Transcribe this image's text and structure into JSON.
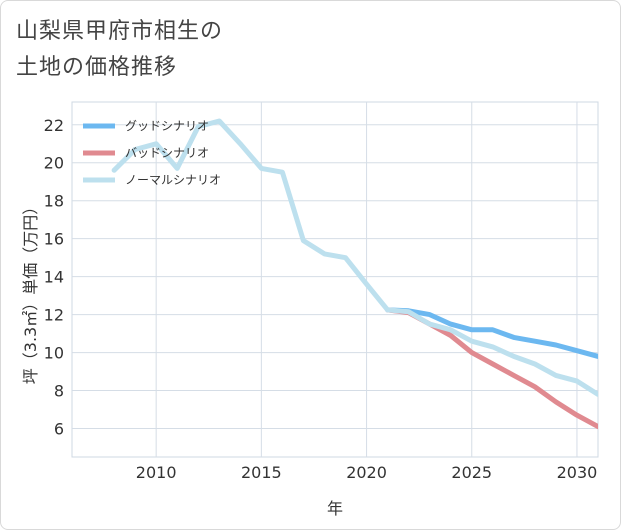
{
  "title": {
    "line1": "山梨県甲府市相生の",
    "line2": "土地の価格推移"
  },
  "chart_data": {
    "type": "line",
    "xlabel": "年",
    "ylabel": "坪（3.3㎡）単価（万円）",
    "xlim": [
      2006,
      2031
    ],
    "ylim": [
      4.5,
      23.2
    ],
    "xticks": [
      2010,
      2015,
      2020,
      2025,
      2030
    ],
    "yticks": [
      6,
      8,
      10,
      12,
      14,
      16,
      18,
      20,
      22
    ],
    "legend_position": "top-left",
    "series": [
      {
        "name": "グッドシナリオ",
        "color": "#6cb8f0",
        "x": [
          2021,
          2022,
          2023,
          2024,
          2025,
          2026,
          2027,
          2028,
          2029,
          2030,
          2031
        ],
        "values": [
          12.25,
          12.2,
          12.0,
          11.5,
          11.2,
          11.2,
          10.8,
          10.6,
          10.4,
          10.1,
          9.8
        ]
      },
      {
        "name": "バッドシナリオ",
        "color": "#e08a90",
        "x": [
          2021,
          2022,
          2023,
          2024,
          2025,
          2026,
          2027,
          2028,
          2029,
          2030,
          2031
        ],
        "values": [
          12.25,
          12.1,
          11.5,
          10.9,
          10.0,
          9.4,
          8.8,
          8.2,
          7.4,
          6.7,
          6.1
        ]
      },
      {
        "name": "ノーマルシナリオ",
        "color": "#bde0ee",
        "x": [
          2008,
          2009,
          2010,
          2011,
          2012,
          2013,
          2014,
          2015,
          2016,
          2017,
          2018,
          2019,
          2020,
          2021,
          2022,
          2023,
          2024,
          2025,
          2026,
          2027,
          2028,
          2029,
          2030,
          2031
        ],
        "values": [
          19.6,
          20.7,
          21.0,
          19.7,
          21.9,
          22.2,
          21.0,
          19.7,
          19.5,
          15.9,
          15.2,
          15.0,
          13.6,
          12.25,
          12.15,
          11.5,
          11.2,
          10.6,
          10.3,
          9.8,
          9.4,
          8.8,
          8.5,
          7.8
        ]
      }
    ]
  }
}
